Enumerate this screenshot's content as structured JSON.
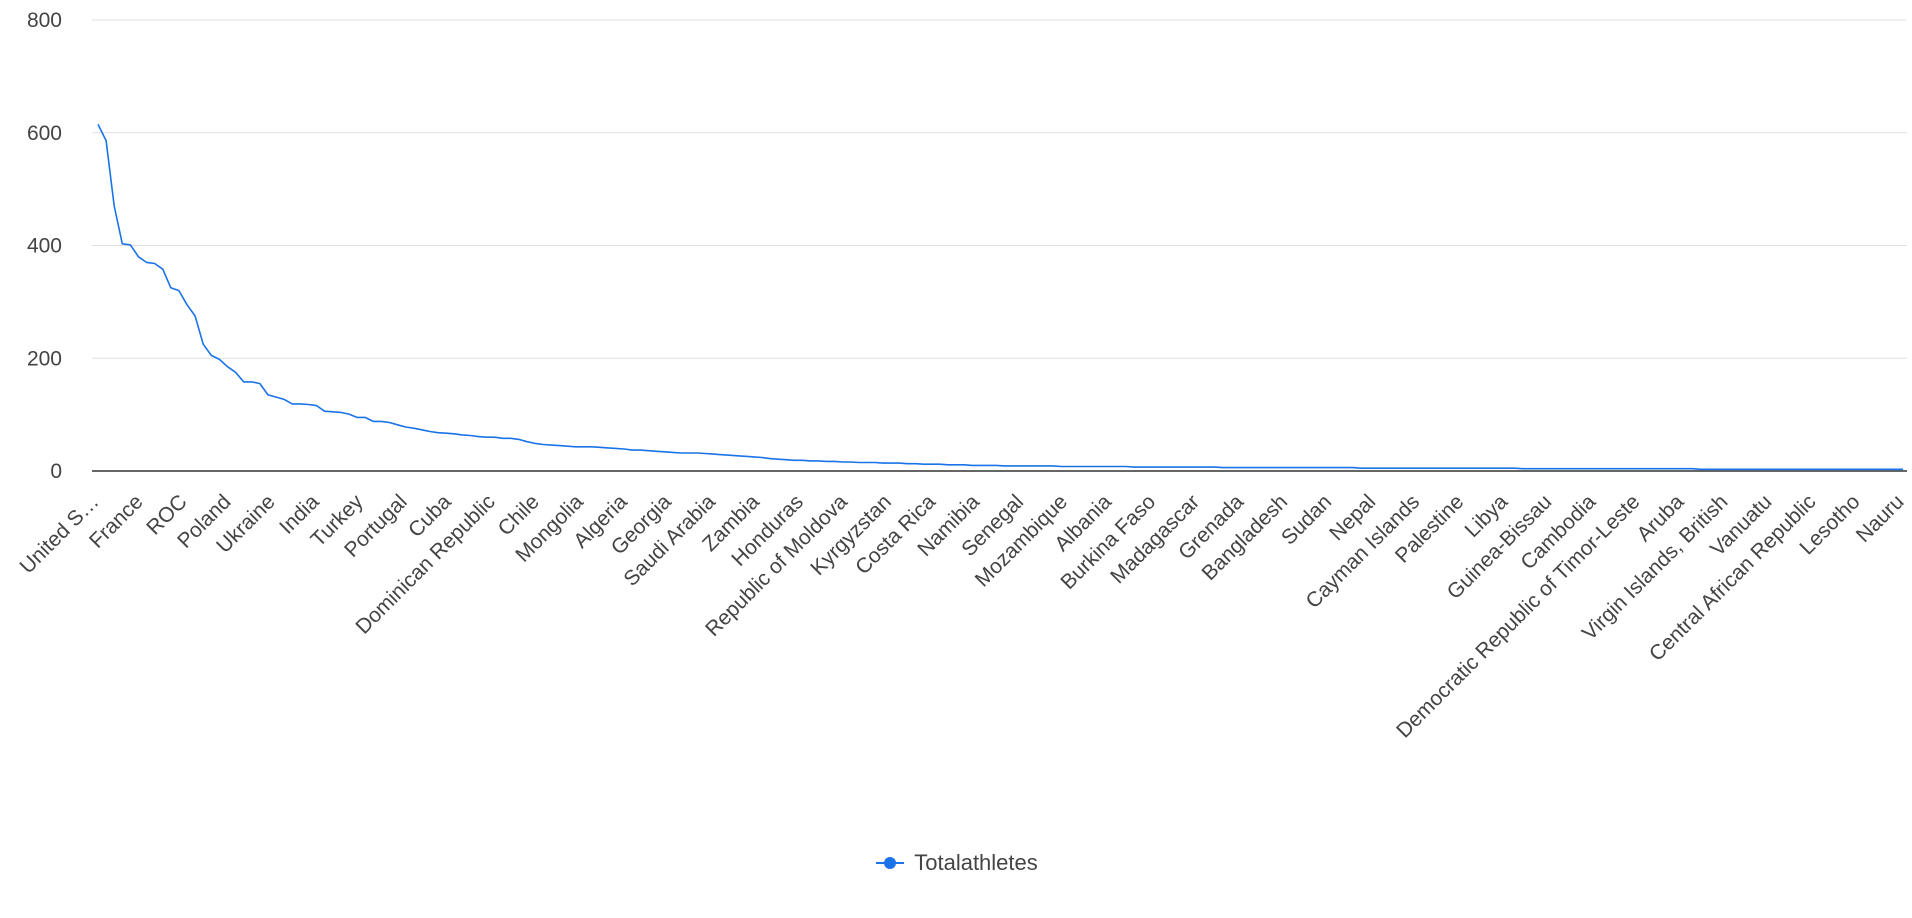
{
  "chart_data": {
    "type": "line",
    "ylim": [
      0,
      800
    ],
    "yticks": [
      0,
      200,
      400,
      600,
      800
    ],
    "grid": true,
    "legend_position": "bottom",
    "x_tick_labels": [
      "United S…",
      "France",
      "ROC",
      "Poland",
      "Ukraine",
      "India",
      "Turkey",
      "Portugal",
      "Cuba",
      "Dominican Republic",
      "Chile",
      "Mongolia",
      "Algeria",
      "Georgia",
      "Saudi Arabia",
      "Zambia",
      "Honduras",
      "Republic of Moldova",
      "Kyrgyzstan",
      "Costa Rica",
      "Namibia",
      "Senegal",
      "Mozambique",
      "Albania",
      "Burkina Faso",
      "Madagascar",
      "Grenada",
      "Bangladesh",
      "Sudan",
      "Nepal",
      "Cayman Islands",
      "Palestine",
      "Libya",
      "Guinea-Bissau",
      "Cambodia",
      "Democratic Republic of Timor-Leste",
      "Aruba",
      "Virgin Islands, British",
      "Vanuatu",
      "Central African Republic",
      "Lesotho",
      "Nauru"
    ],
    "series": [
      {
        "name": "Totalathletes",
        "color": "#1a73e8",
        "values": [
          615,
          586,
          470,
          403,
          401,
          380,
          370,
          368,
          358,
          325,
          320,
          295,
          275,
          225,
          205,
          198,
          185,
          175,
          158,
          158,
          155,
          135,
          131,
          127,
          119,
          119,
          118,
          116,
          106,
          105,
          104,
          101,
          95,
          95,
          88,
          88,
          86,
          82,
          78,
          76,
          73,
          70,
          68,
          67,
          66,
          64,
          63,
          61,
          60,
          60,
          58,
          58,
          56,
          52,
          49,
          47,
          46,
          45,
          44,
          43,
          43,
          43,
          42,
          41,
          40,
          39,
          37,
          37,
          36,
          35,
          34,
          33,
          32,
          32,
          32,
          31,
          30,
          29,
          28,
          27,
          26,
          25,
          24,
          22,
          21,
          20,
          19,
          19,
          18,
          18,
          17,
          17,
          16,
          16,
          15,
          15,
          15,
          14,
          14,
          14,
          13,
          13,
          12,
          12,
          12,
          11,
          11,
          11,
          10,
          10,
          10,
          10,
          9,
          9,
          9,
          9,
          9,
          9,
          9,
          8,
          8,
          8,
          8,
          8,
          8,
          8,
          8,
          8,
          7,
          7,
          7,
          7,
          7,
          7,
          7,
          7,
          7,
          7,
          7,
          6,
          6,
          6,
          6,
          6,
          6,
          6,
          6,
          6,
          6,
          6,
          6,
          6,
          6,
          6,
          6,
          6,
          5,
          5,
          5,
          5,
          5,
          5,
          5,
          5,
          5,
          5,
          5,
          5,
          5,
          5,
          5,
          5,
          5,
          5,
          5,
          5,
          4,
          4,
          4,
          4,
          4,
          4,
          4,
          4,
          4,
          4,
          4,
          4,
          4,
          4,
          4,
          4,
          4,
          4,
          4,
          4,
          4,
          4,
          3,
          3,
          3,
          3,
          3,
          3,
          3,
          3,
          3,
          3,
          3,
          3,
          3,
          3,
          3,
          3,
          3,
          3,
          3,
          3,
          3,
          3,
          3,
          3,
          3,
          3
        ]
      }
    ]
  }
}
